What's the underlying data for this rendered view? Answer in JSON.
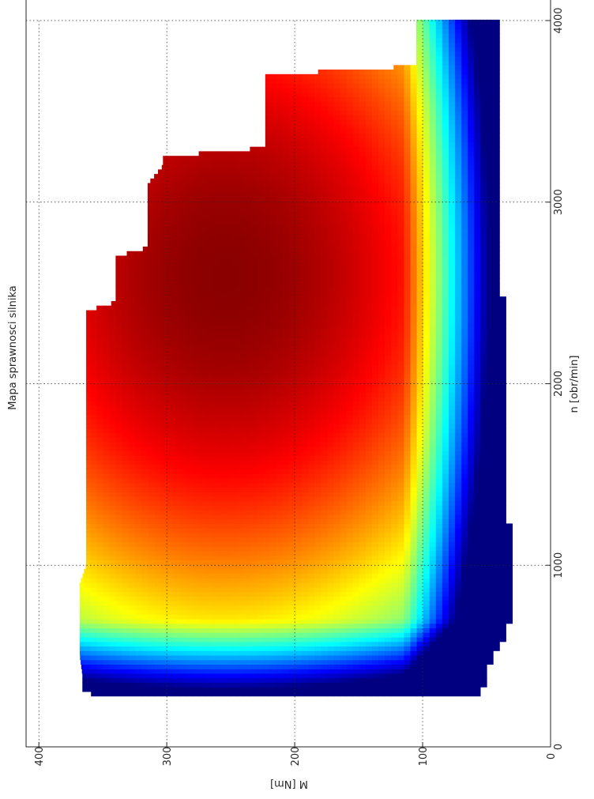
{
  "chart_data": {
    "type": "heatmap",
    "title": "Mapa sprawnosci silnika",
    "xlabel": "n [obr/min]",
    "ylabel": "M [Nm]",
    "xlim": [
      0,
      4000
    ],
    "ylim": [
      0,
      410
    ],
    "x_ticks": [
      0,
      1000,
      2000,
      3000,
      4000
    ],
    "y_ticks": [
      0,
      100,
      200,
      300,
      400
    ],
    "grid": true,
    "colormap": "jet",
    "orientation": "rotated-90-clockwise",
    "torque_envelope": {
      "rpm": [
        280,
        300,
        400,
        500,
        600,
        700,
        800,
        900,
        1000,
        1100,
        1200,
        1300,
        1400,
        1500,
        1600,
        1800,
        2000,
        2200,
        2400,
        2450,
        2500,
        2600,
        2700,
        2750,
        2800,
        2900,
        3000,
        3100,
        3200,
        3250,
        3300,
        3400,
        3500,
        3600,
        3700,
        3750,
        3800,
        3900,
        4000
      ],
      "max_torque": [
        348,
        366,
        366,
        368,
        368,
        368,
        368,
        368,
        363,
        363,
        363,
        363,
        363,
        363,
        363,
        363,
        363,
        363,
        363,
        340,
        340,
        340,
        340,
        315,
        315,
        315,
        315,
        315,
        303,
        303,
        223,
        223,
        223,
        223,
        223,
        105,
        105,
        105,
        105
      ]
    },
    "min_torque_envelope": {
      "rpm": [
        280,
        330,
        400,
        450,
        500,
        550,
        600,
        700,
        800,
        900,
        1000,
        1100,
        1200,
        1250,
        1300,
        1400,
        1600,
        1800,
        2000,
        2200,
        2400,
        2450,
        2500,
        2600,
        2800,
        3000,
        3100,
        3200,
        3400,
        3600,
        3800,
        4000
      ],
      "min_torque": [
        55,
        52,
        50,
        48,
        45,
        40,
        36,
        32,
        30,
        30,
        30,
        31,
        32,
        33,
        36,
        36,
        36,
        36,
        36,
        36,
        36,
        36,
        40,
        40,
        40,
        38,
        38,
        38,
        38,
        38,
        40,
        40
      ]
    },
    "efficiency_peak": {
      "rpm": 2600,
      "torque": 255
    }
  }
}
